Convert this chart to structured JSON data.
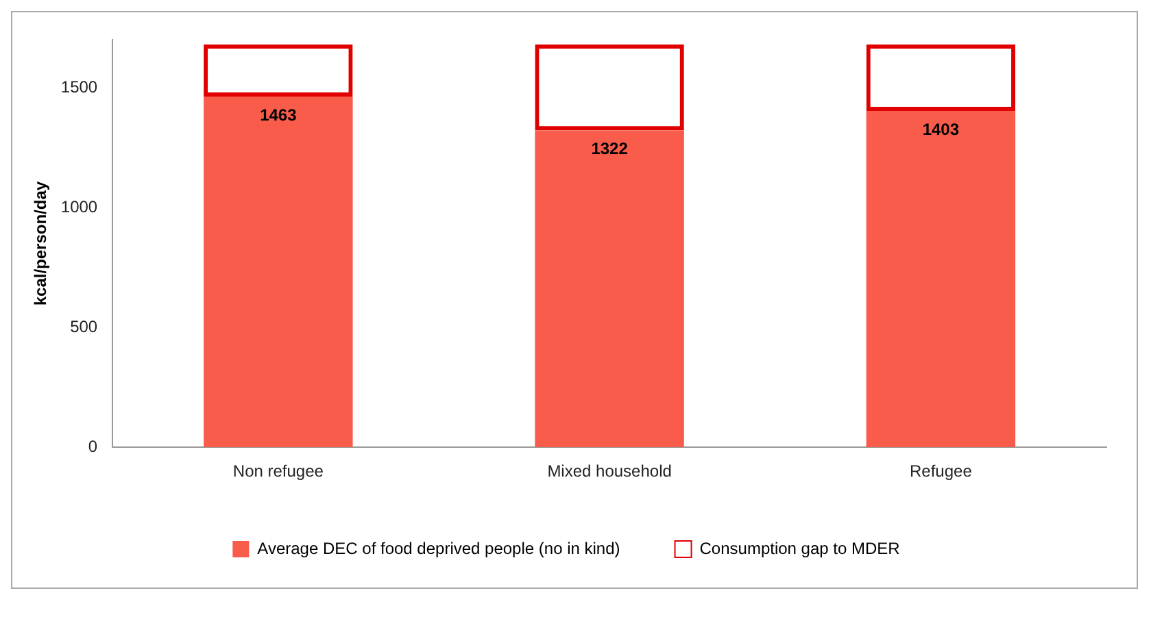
{
  "chart_data": {
    "type": "bar",
    "stacked": true,
    "ylabel": "kcal/person/day",
    "categories": [
      "Non refugee",
      "Mixed household",
      "Refugee"
    ],
    "series": [
      {
        "name": "Average DEC of food deprived people (no in kind)",
        "color": "#f95c4a",
        "values": [
          1463,
          1322,
          1403
        ],
        "value_labels": [
          "1463",
          "1322",
          "1403"
        ]
      },
      {
        "name": "Consumption gap to MDER",
        "color": "#e00000",
        "values": [
          217,
          358,
          277
        ]
      }
    ],
    "ylim": [
      0,
      1700
    ],
    "yticks": [
      0,
      500,
      1000,
      1500
    ],
    "grid": false,
    "legend": "bottom"
  }
}
